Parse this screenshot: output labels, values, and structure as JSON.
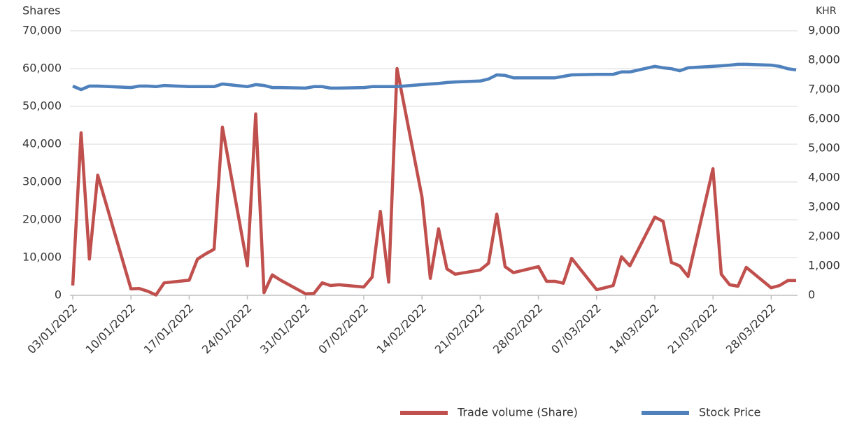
{
  "chart_data": {
    "type": "line",
    "y_label": "Shares",
    "y2_label": "KHR",
    "x": [
      "03/01/2022",
      "04/01/2022",
      "05/01/2022",
      "06/01/2022",
      "10/01/2022",
      "11/01/2022",
      "12/01/2022",
      "13/01/2022",
      "14/01/2022",
      "17/01/2022",
      "18/01/2022",
      "19/01/2022",
      "20/01/2022",
      "21/01/2022",
      "24/01/2022",
      "25/01/2022",
      "26/01/2022",
      "27/01/2022",
      "28/01/2022",
      "31/01/2022",
      "01/02/2022",
      "02/02/2022",
      "03/02/2022",
      "04/02/2022",
      "07/02/2022",
      "08/02/2022",
      "09/02/2022",
      "10/02/2022",
      "11/02/2022",
      "14/02/2022",
      "15/02/2022",
      "16/02/2022",
      "17/02/2022",
      "18/02/2022",
      "21/02/2022",
      "22/02/2022",
      "23/02/2022",
      "24/02/2022",
      "25/02/2022",
      "28/02/2022",
      "01/03/2022",
      "02/03/2022",
      "03/03/2022",
      "04/03/2022",
      "07/03/2022",
      "08/03/2022",
      "09/03/2022",
      "10/03/2022",
      "11/03/2022",
      "14/03/2022",
      "15/03/2022",
      "16/03/2022",
      "17/03/2022",
      "18/03/2022",
      "21/03/2022",
      "22/03/2022",
      "23/03/2022",
      "24/03/2022",
      "25/03/2022",
      "28/03/2022",
      "29/03/2022",
      "30/03/2022",
      "31/03/2022"
    ],
    "series": [
      {
        "name": "Trade volume (Share)",
        "color": "#c0504d",
        "axis": "y",
        "values": [
          2600,
          43000,
          9600,
          31800,
          1700,
          1800,
          1100,
          100,
          3300,
          4000,
          9600,
          11000,
          12200,
          44500,
          7800,
          48000,
          700,
          5400,
          4000,
          400,
          500,
          3300,
          2600,
          2800,
          2200,
          4800,
          22200,
          3500,
          60000,
          26000,
          4500,
          17600,
          7000,
          5600,
          6700,
          8500,
          21500,
          7600,
          6000,
          7600,
          3700,
          3700,
          3200,
          9800,
          1500,
          2000,
          2600,
          10200,
          7800,
          20700,
          19600,
          8700,
          7800,
          5000,
          33500,
          5600,
          2800,
          2400,
          7400,
          2000,
          2600,
          3900,
          3900
        ]
      },
      {
        "name": "Stock Price",
        "color": "#4f81bd",
        "axis": "y2",
        "values": [
          7120,
          7000,
          7120,
          7120,
          7070,
          7120,
          7120,
          7100,
          7140,
          7100,
          7100,
          7100,
          7100,
          7190,
          7100,
          7170,
          7140,
          7070,
          7070,
          7050,
          7100,
          7100,
          7050,
          7050,
          7070,
          7100,
          7100,
          7100,
          7100,
          7170,
          7190,
          7210,
          7240,
          7260,
          7290,
          7360,
          7500,
          7480,
          7400,
          7400,
          7400,
          7400,
          7450,
          7500,
          7520,
          7520,
          7520,
          7600,
          7600,
          7790,
          7740,
          7710,
          7640,
          7740,
          7790,
          7810,
          7830,
          7860,
          7860,
          7830,
          7790,
          7710,
          7670
        ]
      }
    ],
    "xlim": [
      "03/01/2022",
      "31/03/2022"
    ],
    "xticks": [
      "03/01/2022",
      "10/01/2022",
      "17/01/2022",
      "24/01/2022",
      "31/01/2022",
      "07/02/2022",
      "14/02/2022",
      "21/02/2022",
      "28/02/2022",
      "07/03/2022",
      "14/03/2022",
      "21/03/2022",
      "28/03/2022"
    ],
    "ylim": [
      0,
      70000
    ],
    "yticks": [
      0,
      {
        "value": 10000,
        "label": "10,000"
      },
      {
        "value": 20000,
        "label": "20,000"
      },
      {
        "value": 30000,
        "label": "30,000"
      },
      {
        "value": 40000,
        "label": "40,000"
      },
      {
        "value": 50000,
        "label": "50,000"
      },
      {
        "value": 60000,
        "label": "60,000"
      },
      {
        "value": 70000,
        "label": "70,000"
      }
    ],
    "y2lim": [
      0,
      9000
    ],
    "y2ticks": [
      0,
      {
        "value": 1000,
        "label": "1,000"
      },
      {
        "value": 2000,
        "label": "2,000"
      },
      {
        "value": 3000,
        "label": "3,000"
      },
      {
        "value": 4000,
        "label": "4,000"
      },
      {
        "value": 5000,
        "label": "5,000"
      },
      {
        "value": 6000,
        "label": "6,000"
      },
      {
        "value": 7000,
        "label": "7,000"
      },
      {
        "value": 8000,
        "label": "8,000"
      },
      {
        "value": 9000,
        "label": "9,000"
      }
    ],
    "grid": true,
    "legend": "bottom"
  }
}
